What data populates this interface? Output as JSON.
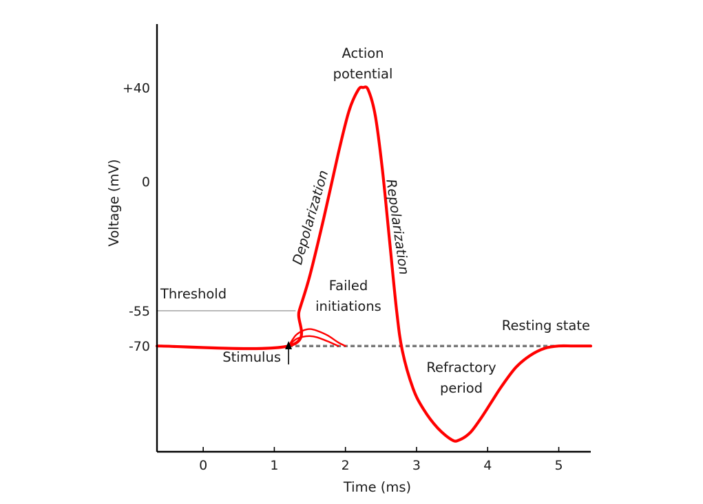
{
  "chart_data": {
    "type": "line",
    "title": "",
    "xlabel": "Time (ms)",
    "ylabel": "Voltage (mV)",
    "xlim": [
      -0.65,
      5.45
    ],
    "ylim": [
      -115,
      67
    ],
    "x_ticks": [
      {
        "value": 0,
        "label": "0"
      },
      {
        "value": 1,
        "label": "1"
      },
      {
        "value": 2,
        "label": "2"
      },
      {
        "value": 3,
        "label": "3"
      },
      {
        "value": 4,
        "label": "4"
      },
      {
        "value": 5,
        "label": "5"
      }
    ],
    "y_ticks": [
      {
        "value": 40,
        "label": "+40"
      },
      {
        "value": 0,
        "label": "0"
      },
      {
        "value": -55,
        "label": "-55"
      },
      {
        "value": -70,
        "label": "-70"
      }
    ],
    "colors": {
      "action_potential": "#ff0000",
      "threshold": "#aaaaaa",
      "resting_dashed": "#777777",
      "axis": "#000000"
    },
    "series": [
      {
        "role": "action-potential",
        "x": [
          -0.65,
          1.2,
          1.35,
          1.5,
          1.7,
          1.9,
          2.05,
          2.18,
          2.25,
          2.32,
          2.42,
          2.52,
          2.62,
          2.72,
          2.8,
          2.95,
          3.1,
          3.3,
          3.5,
          3.6,
          3.75,
          3.9,
          4.05,
          4.2,
          4.4,
          4.6,
          4.8,
          5.0,
          5.2,
          5.45
        ],
        "y": [
          -70,
          -70,
          -55,
          -40,
          -15,
          12,
          30,
          39,
          40,
          39,
          28,
          5,
          -25,
          -55,
          -72,
          -88,
          -97,
          -105,
          -110,
          -110,
          -107,
          -101,
          -94,
          -87,
          -79,
          -74,
          -71,
          -70,
          -70,
          -70
        ]
      },
      {
        "role": "failed-initiation",
        "x": [
          1.2,
          1.3,
          1.4,
          1.5,
          1.6,
          1.75,
          1.9,
          2.0
        ],
        "y": [
          -70,
          -65.5,
          -63.5,
          -62.8,
          -63.5,
          -65.5,
          -68.5,
          -70
        ]
      },
      {
        "role": "failed-initiation",
        "x": [
          1.2,
          1.3,
          1.4,
          1.5,
          1.6,
          1.75,
          1.9
        ],
        "y": [
          -70,
          -67.2,
          -66.1,
          -65.8,
          -66.3,
          -68,
          -70
        ]
      }
    ],
    "threshold": {
      "value": -55,
      "x_end": 1.3,
      "label": "Threshold"
    },
    "resting": {
      "value": -70,
      "x_start": 1.2,
      "x_end": 5.45,
      "label": "Resting state"
    },
    "stimulus": {
      "x": 1.2,
      "label": "Stimulus"
    },
    "annotations": {
      "action_potential": [
        "Action",
        "potential"
      ],
      "depolarization": "Depolarization",
      "repolarization": "Repolarization",
      "failed_initiations": [
        "Failed",
        "initiations"
      ],
      "refractory_period": [
        "Refractory",
        "period"
      ]
    }
  }
}
